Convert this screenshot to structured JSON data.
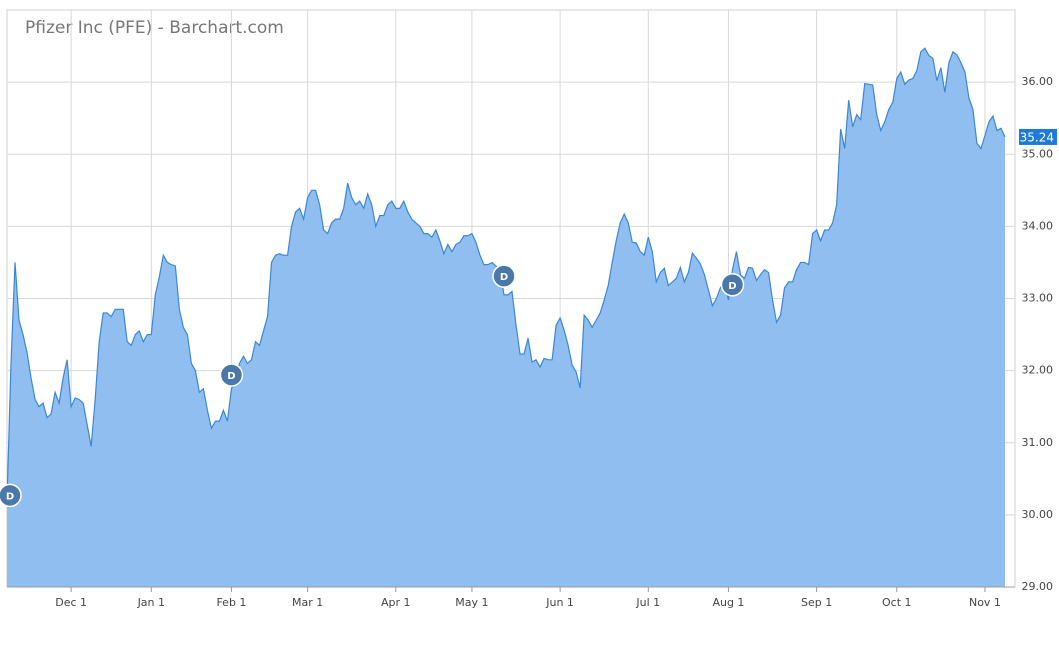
{
  "chart_data": {
    "type": "area",
    "title": "Pfizer Inc (PFE) - Barchart.com",
    "categories": [
      null,
      null,
      null,
      null,
      null,
      null,
      null,
      null,
      null,
      null,
      null,
      null,
      null,
      null,
      null,
      null,
      "Dec 1",
      null,
      null,
      null,
      null,
      null,
      null,
      null,
      null,
      null,
      null,
      null,
      null,
      null,
      null,
      null,
      null,
      null,
      null,
      null,
      "Jan 1",
      null,
      null,
      null,
      null,
      null,
      null,
      null,
      null,
      null,
      null,
      null,
      null,
      null,
      null,
      null,
      null,
      null,
      null,
      null,
      "Feb 1",
      null,
      null,
      null,
      null,
      null,
      null,
      null,
      null,
      null,
      null,
      null,
      null,
      null,
      null,
      null,
      null,
      null,
      null,
      "Mar 1",
      null,
      null,
      null,
      null,
      null,
      null,
      null,
      null,
      null,
      null,
      null,
      null,
      null,
      null,
      null,
      null,
      null,
      null,
      null,
      null,
      null,
      "Apr 1",
      null,
      null,
      null,
      null,
      null,
      null,
      null,
      null,
      null,
      null,
      null,
      null,
      null,
      null,
      null,
      null,
      null,
      null,
      "May 1",
      null,
      null,
      null,
      null,
      null,
      null,
      null,
      null,
      null,
      null,
      null,
      null,
      null,
      null,
      null,
      null,
      null,
      null,
      null,
      null,
      null,
      "Jun 1",
      null,
      null,
      null,
      null,
      null,
      null,
      null,
      null,
      null,
      null,
      null,
      null,
      null,
      null,
      null,
      null,
      null,
      null,
      null,
      null,
      null,
      "Jul 1",
      null,
      null,
      null,
      null,
      null,
      null,
      null,
      null,
      null,
      null,
      null,
      null,
      null,
      null,
      null,
      null,
      null,
      null,
      null,
      "Aug 1",
      null,
      null,
      null,
      null,
      null,
      null,
      null,
      null,
      null,
      null,
      null,
      null,
      null,
      null,
      null,
      null,
      null,
      null,
      null,
      null,
      null,
      "Sep 1",
      null,
      null,
      null,
      null,
      null,
      null,
      null,
      null,
      null,
      null,
      null,
      null,
      null,
      null,
      null,
      null,
      null,
      null,
      null,
      "Oct 1",
      null,
      null,
      null,
      null,
      null,
      null,
      null,
      null,
      null,
      null,
      null,
      null,
      null,
      null,
      null,
      null,
      null,
      null,
      null,
      null,
      null,
      "Nov 1",
      null,
      null,
      null,
      null,
      null
    ],
    "series": [
      {
        "color": "#3a87d6",
        "fill": "#90bef0",
        "values": [
          30.2,
          32.1,
          33.5,
          32.7,
          32.5,
          32.25,
          31.9,
          31.6,
          31.5,
          31.55,
          31.35,
          31.4,
          31.7,
          31.55,
          31.9,
          32.15,
          31.5,
          31.62,
          31.6,
          31.55,
          31.25,
          30.95,
          31.6,
          32.4,
          32.8,
          32.8,
          32.75,
          32.85,
          32.85,
          32.85,
          32.4,
          32.35,
          32.5,
          32.55,
          32.4,
          32.5,
          32.5,
          33.05,
          33.3,
          33.6,
          33.5,
          33.47,
          33.45,
          32.85,
          32.6,
          32.5,
          32.1,
          32.0,
          31.7,
          31.75,
          31.45,
          31.2,
          31.3,
          31.3,
          31.45,
          31.3,
          31.75,
          31.85,
          32.1,
          32.2,
          32.1,
          32.15,
          32.4,
          32.35,
          32.55,
          32.75,
          33.5,
          33.6,
          33.62,
          33.6,
          33.6,
          34.0,
          34.2,
          34.25,
          34.1,
          34.4,
          34.5,
          34.5,
          34.3,
          33.95,
          33.9,
          34.05,
          34.1,
          34.1,
          34.25,
          34.6,
          34.4,
          34.3,
          34.35,
          34.25,
          34.45,
          34.3,
          34.0,
          34.15,
          34.15,
          34.3,
          34.35,
          34.25,
          34.25,
          34.35,
          34.2,
          34.1,
          34.05,
          34.0,
          33.9,
          33.9,
          33.85,
          33.95,
          33.8,
          33.62,
          33.75,
          33.65,
          33.75,
          33.78,
          33.87,
          33.87,
          33.9,
          33.78,
          33.6,
          33.47,
          33.47,
          33.5,
          33.45,
          33.4,
          33.05,
          33.05,
          33.1,
          32.63,
          32.23,
          32.23,
          32.45,
          32.12,
          32.15,
          32.05,
          32.17,
          32.15,
          32.15,
          32.63,
          32.73,
          32.56,
          32.35,
          32.08,
          31.98,
          31.76,
          32.77,
          32.7,
          32.6,
          32.7,
          32.8,
          32.98,
          33.18,
          33.5,
          33.8,
          34.05,
          34.17,
          34.05,
          33.78,
          33.77,
          33.65,
          33.6,
          33.85,
          33.65,
          33.23,
          33.36,
          33.42,
          33.18,
          33.23,
          33.28,
          33.43,
          33.23,
          33.36,
          33.63,
          33.56,
          33.48,
          33.33,
          33.12,
          32.9,
          33.0,
          33.15,
          33.23,
          32.98,
          33.4,
          33.65,
          33.33,
          33.28,
          33.43,
          33.42,
          33.25,
          33.33,
          33.4,
          33.36,
          32.98,
          32.67,
          32.77,
          33.15,
          33.23,
          33.23,
          33.4,
          33.5,
          33.5,
          33.47,
          33.9,
          33.95,
          33.8,
          33.95,
          33.95,
          34.05,
          34.3,
          35.35,
          35.08,
          35.75,
          35.38,
          35.55,
          35.48,
          35.98,
          35.97,
          35.96,
          35.55,
          35.33,
          35.45,
          35.62,
          35.72,
          36.05,
          36.14,
          35.97,
          36.03,
          36.05,
          36.16,
          36.42,
          36.47,
          36.37,
          36.33,
          36.02,
          36.2,
          35.86,
          36.27,
          36.42,
          36.38,
          36.27,
          36.14,
          35.78,
          35.62,
          35.15,
          35.08,
          35.26,
          35.45,
          35.53,
          35.33,
          35.36,
          35.24
        ]
      }
    ],
    "dividends": [
      {
        "label": "D",
        "index": 0,
        "value": 30.27
      },
      {
        "label": "D",
        "index": 56,
        "value": 31.94
      },
      {
        "label": "D",
        "index": 124,
        "value": 33.31
      },
      {
        "label": "D",
        "index": 181,
        "value": 33.19
      }
    ],
    "ylim": [
      29,
      37
    ],
    "yticks": [
      {
        "value": 29,
        "label": "29.00"
      },
      {
        "value": 30,
        "label": "30.00"
      },
      {
        "value": 31,
        "label": "31.00"
      },
      {
        "value": 32,
        "label": "32.00"
      },
      {
        "value": 33,
        "label": "33.00"
      },
      {
        "value": 34,
        "label": "34.00"
      },
      {
        "value": 35,
        "label": "35.00"
      },
      {
        "value": 36,
        "label": "36.00"
      }
    ],
    "grid": true,
    "last_value_color": "#1e7ad6"
  }
}
